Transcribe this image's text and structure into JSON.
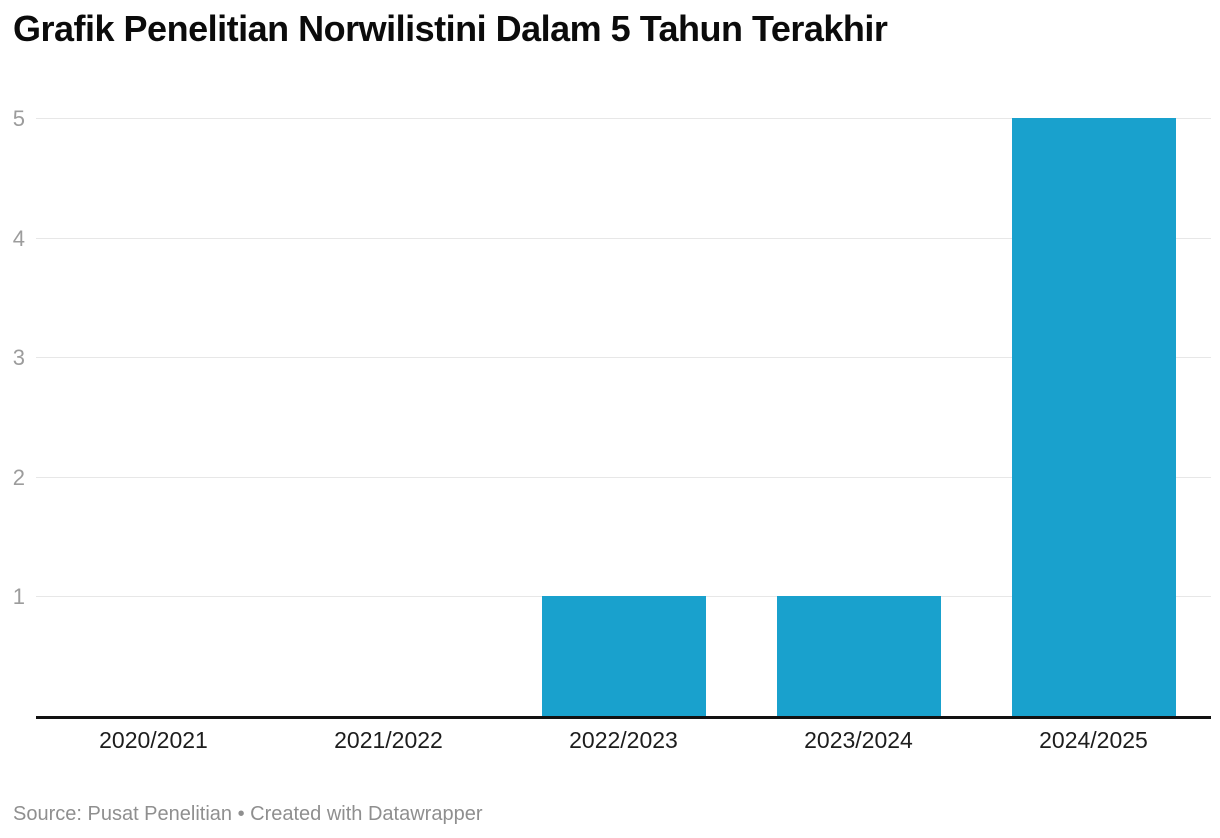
{
  "header": {
    "title": "Grafik Penelitian Norwilistini Dalam 5 Tahun Terakhir"
  },
  "footer": {
    "source_text": "Source: Pusat Penelitian • Created with Datawrapper"
  },
  "colors": {
    "bar": "#19a1cd",
    "gridline": "#e7e7e7",
    "axis_line": "#111111",
    "y_tick_text": "#9c9c9c",
    "x_tick_text": "#1d1d1d",
    "title_text": "#0b0b0b",
    "footer_text": "#8f8f8f",
    "background": "#ffffff"
  },
  "chart_data": {
    "type": "bar",
    "title": "Grafik Penelitian Norwilistini Dalam 5 Tahun Terakhir",
    "categories": [
      "2020/2021",
      "2021/2022",
      "2022/2023",
      "2023/2024",
      "2024/2025"
    ],
    "values": [
      0,
      0,
      1,
      1,
      5
    ],
    "xlabel": "",
    "ylabel": "",
    "ylim": [
      0,
      5
    ],
    "yticks": [
      1,
      2,
      3,
      4,
      5
    ],
    "grid": "horizontal",
    "legend": "none",
    "source": "Pusat Penelitian",
    "attribution": "Created with Datawrapper"
  }
}
